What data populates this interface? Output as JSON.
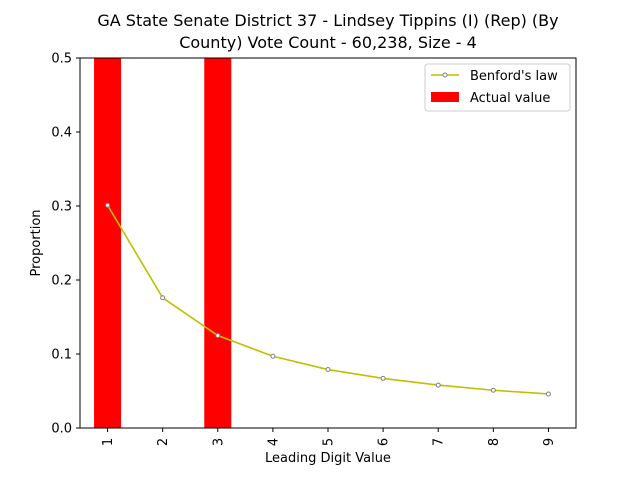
{
  "chart_data": {
    "type": "bar",
    "title_lines": [
      "GA State Senate District 37 - Lindsey Tippins (I) (Rep) (By",
      "County) Vote Count - 60,238, Size - 4"
    ],
    "xlabel": "Leading Digit Value",
    "ylabel": "Proportion",
    "categories": [
      "1",
      "2",
      "3",
      "4",
      "5",
      "6",
      "7",
      "8",
      "9"
    ],
    "ylim": [
      0,
      0.5
    ],
    "yticks": [
      "0.0",
      "0.1",
      "0.2",
      "0.3",
      "0.4",
      "0.5"
    ],
    "series": [
      {
        "name": "Actual value",
        "kind": "bar",
        "color": "#ff0000",
        "values": [
          0.5,
          0,
          0.5,
          0,
          0,
          0,
          0,
          0,
          0
        ]
      },
      {
        "name": "Benford's law",
        "kind": "line",
        "color": "#bfbf00",
        "values": [
          0.301,
          0.176,
          0.125,
          0.097,
          0.079,
          0.067,
          0.058,
          0.051,
          0.046
        ]
      }
    ],
    "legend_position": "top-right",
    "grid": false
  }
}
